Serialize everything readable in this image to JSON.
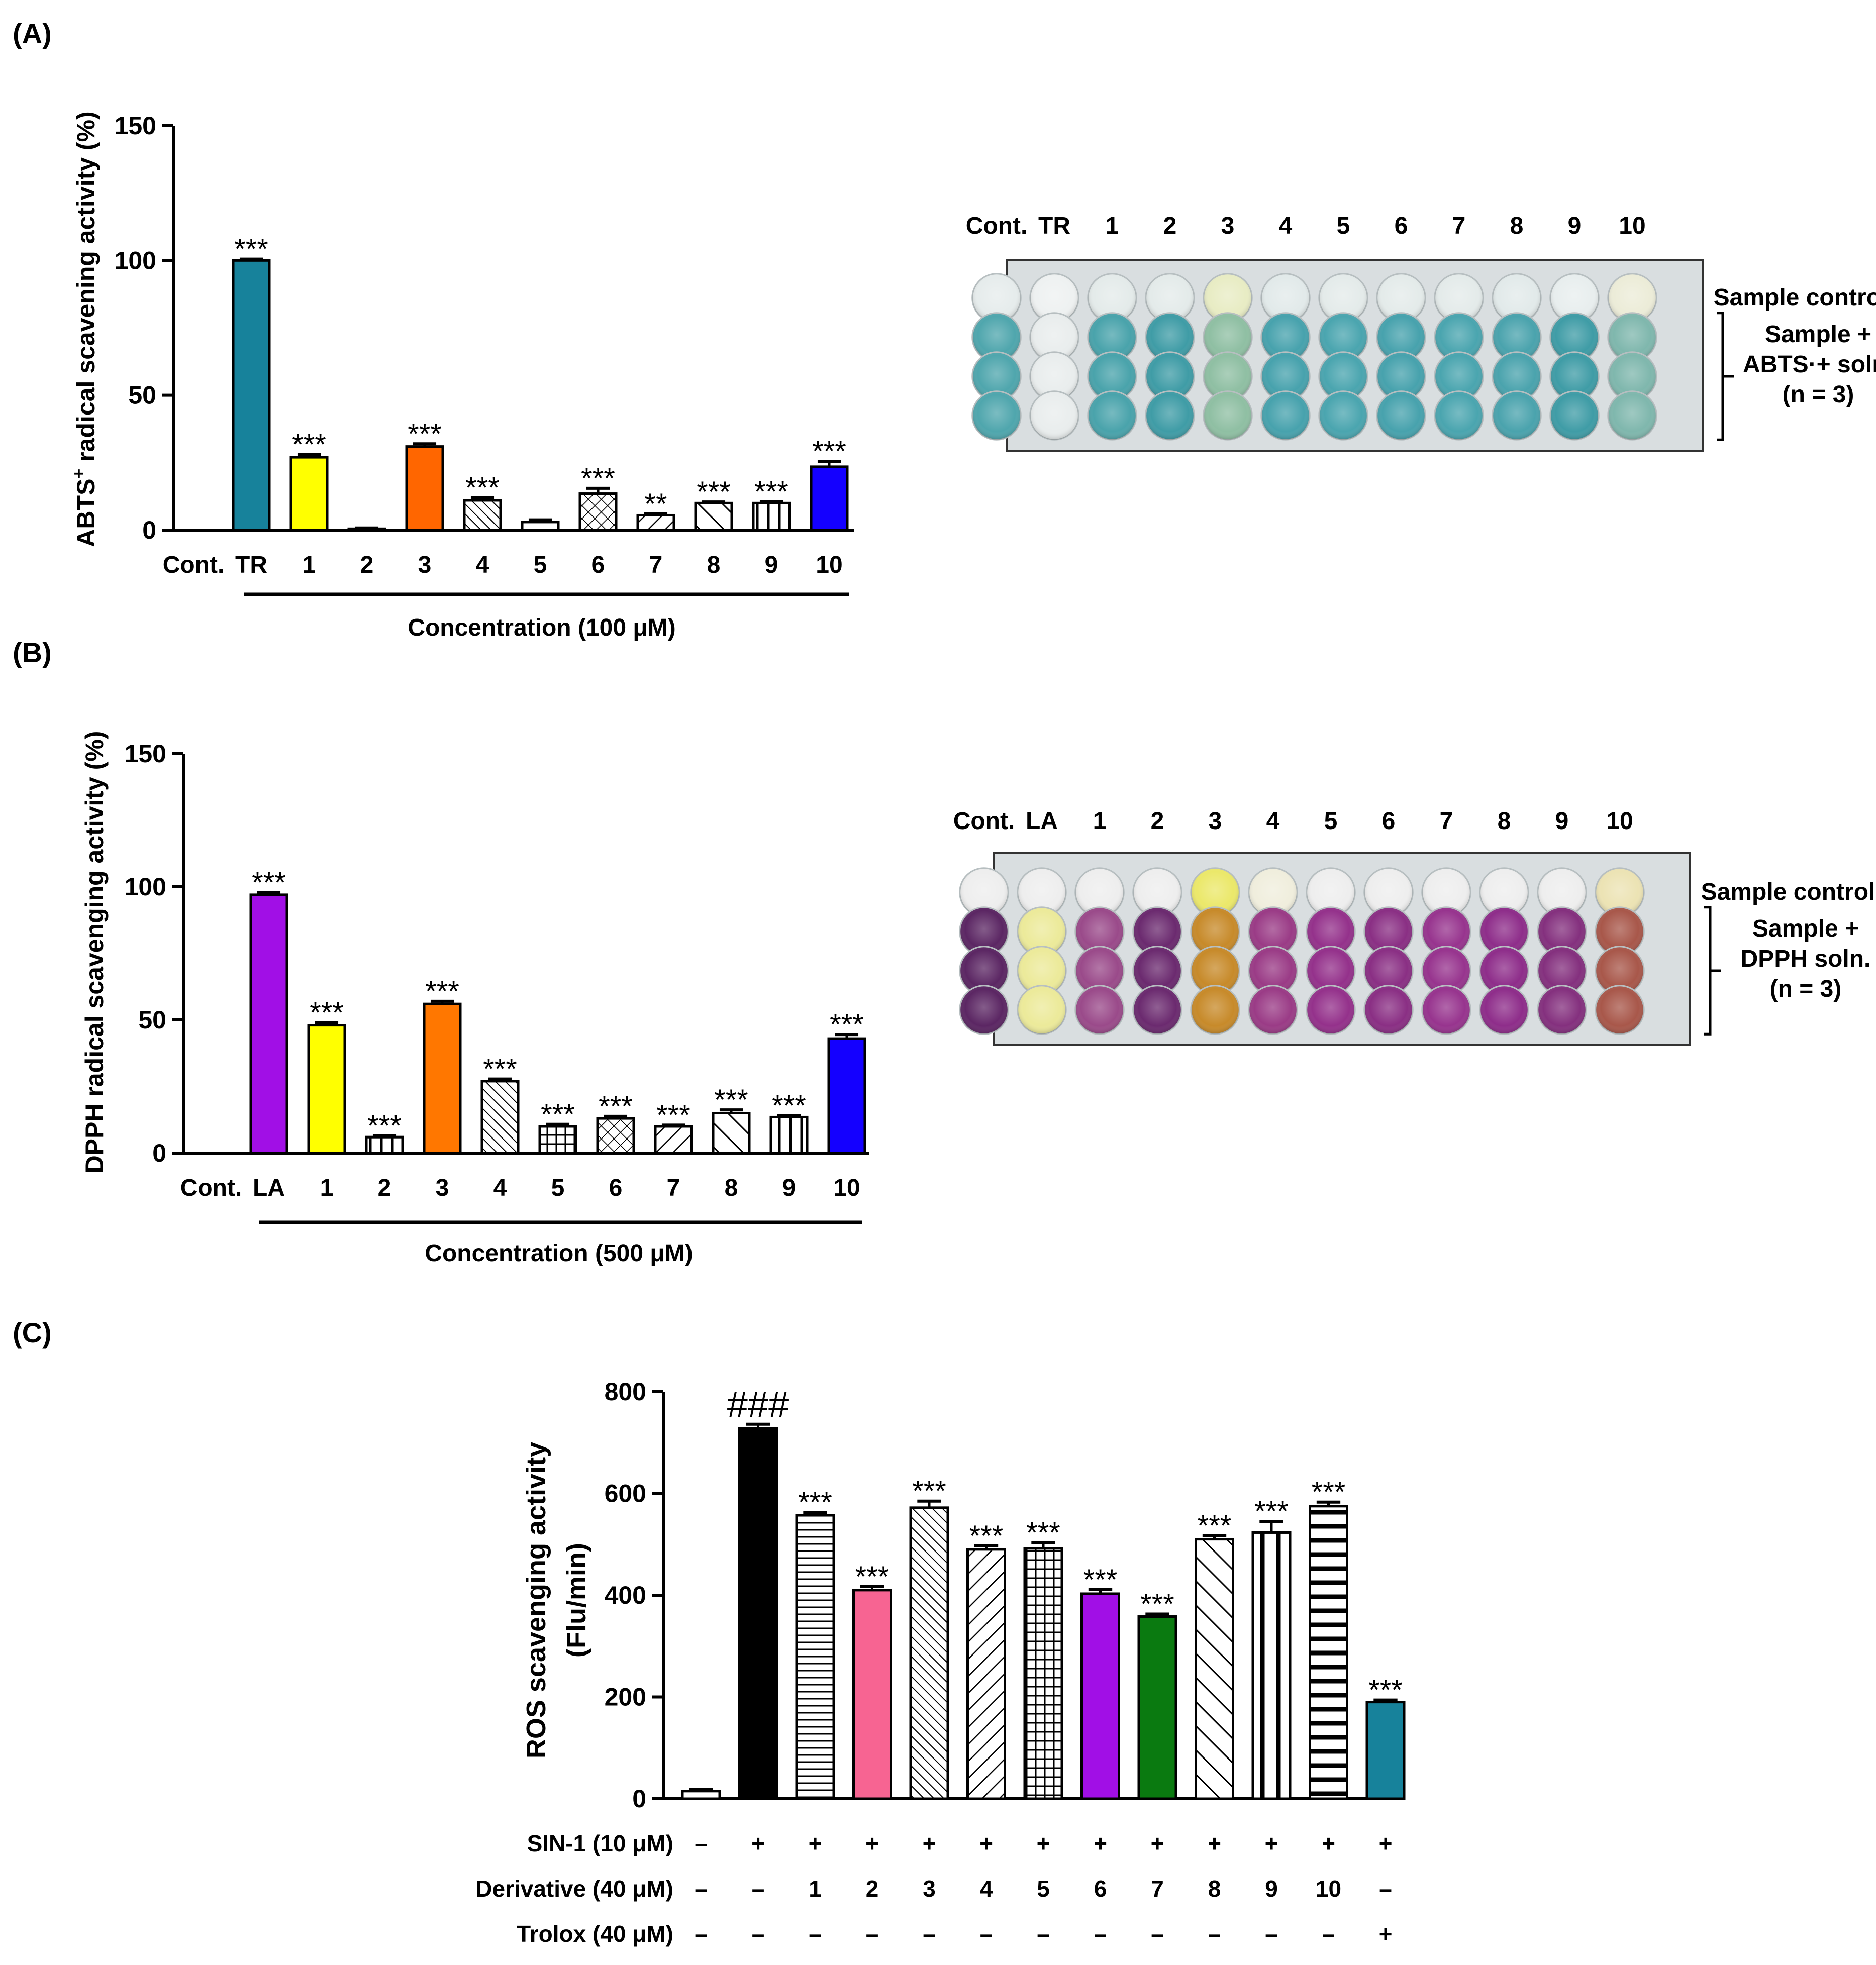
{
  "chart_data": [
    {
      "panel": "(A)",
      "type": "bar",
      "ylabel": "ABTS+ radical scavening activity (%)",
      "ylabel_main": "ABTS",
      "ylabel_sup": "+",
      "ylabel_rest": " radical scavening activity (%)",
      "xlabel": "Concentration (100 μM)",
      "ylim": [
        0,
        150
      ],
      "yticks": [
        "0",
        "50",
        "100",
        "150"
      ],
      "categories": [
        "Cont.",
        "TR",
        "1",
        "2",
        "3",
        "4",
        "5",
        "6",
        "7",
        "8",
        "9",
        "10"
      ],
      "values": [
        0,
        100,
        27,
        0.5,
        31,
        11,
        3,
        13.5,
        5.5,
        10,
        10,
        23.5
      ],
      "errors": [
        0,
        0.5,
        1,
        0.3,
        1,
        1,
        0.8,
        2,
        0.5,
        0.4,
        0.5,
        2
      ],
      "fills": [
        "none",
        "#17829b",
        "#ffff00",
        "none",
        "#ff6600",
        "diag-dense",
        "none",
        "cross",
        "diag-back",
        "diag-wide",
        "vertical",
        "#1400ff"
      ],
      "significance": [
        "",
        "***",
        "***",
        "",
        "***",
        "***",
        "",
        "***",
        "**",
        "***",
        "***",
        "***"
      ]
    },
    {
      "panel": "(B)",
      "type": "bar",
      "ylabel": "DPPH radical scavenging activity (%)",
      "xlabel": "Concentration (500 μM)",
      "ylim": [
        0,
        150
      ],
      "yticks": [
        "0",
        "50",
        "100",
        "150"
      ],
      "categories": [
        "Cont.",
        "LA",
        "1",
        "2",
        "3",
        "4",
        "5",
        "6",
        "7",
        "8",
        "9",
        "10"
      ],
      "values": [
        0,
        97,
        48,
        6,
        56,
        27,
        10,
        13,
        10,
        15,
        13.5,
        43
      ],
      "errors": [
        0,
        0.8,
        1,
        0.5,
        1,
        0.8,
        0.8,
        0.8,
        0.5,
        1.2,
        0.6,
        1.5
      ],
      "fills": [
        "none",
        "#a10fe6",
        "#ffff00",
        "vertical",
        "#ff7700",
        "diag-dense",
        "grid",
        "cross",
        "diag-back",
        "diag-wide",
        "vertical",
        "#1400ff"
      ],
      "significance": [
        "",
        "***",
        "***",
        "***",
        "***",
        "***",
        "***",
        "***",
        "***",
        "***",
        "***",
        "***"
      ]
    },
    {
      "panel": "(C)",
      "type": "bar",
      "ylabel_line1": "ROS scavenging activity",
      "ylabel_line2": "(Flu/min)",
      "ylim": [
        0,
        800
      ],
      "yticks": [
        "0",
        "200",
        "400",
        "600",
        "800"
      ],
      "values": [
        15,
        728,
        557,
        410,
        572,
        490,
        492,
        403,
        358,
        510,
        523,
        575,
        190
      ],
      "errors": [
        3,
        8,
        6,
        7,
        13,
        7,
        11,
        8,
        5,
        7,
        22,
        8,
        4
      ],
      "fills": [
        "none",
        "#000000",
        "horizontal",
        "#f76492",
        "diag-dense",
        "diag-back",
        "grid",
        "#a10fe6",
        "#0a7a10",
        "diag-wide",
        "vertical-bold",
        "horizontal-bold",
        "#17829b"
      ],
      "significance": [
        "",
        "###",
        "***",
        "***",
        "***",
        "***",
        "***",
        "***",
        "***",
        "***",
        "***",
        "***",
        "***"
      ],
      "rows": [
        {
          "label": "SIN-1 (10 μM)",
          "cells": [
            "–",
            "+",
            "+",
            "+",
            "+",
            "+",
            "+",
            "+",
            "+",
            "+",
            "+",
            "+",
            "+"
          ]
        },
        {
          "label": "Derivative (40 μM)",
          "cells": [
            "–",
            "–",
            "1",
            "2",
            "3",
            "4",
            "5",
            "6",
            "7",
            "8",
            "9",
            "10",
            "–"
          ]
        },
        {
          "label": "Trolox (40 μM)",
          "cells": [
            "–",
            "–",
            "–",
            "–",
            "–",
            "–",
            "–",
            "–",
            "–",
            "–",
            "–",
            "–",
            "+"
          ]
        }
      ]
    }
  ],
  "plates": [
    {
      "columns": [
        "Cont.",
        "TR",
        "1",
        "2",
        "3",
        "4",
        "5",
        "6",
        "7",
        "8",
        "9",
        "10"
      ],
      "row_label_top": "Sample control",
      "row_label_group": [
        "Sample +",
        "ABTS·+ soln.",
        "(n = 3)"
      ],
      "well_colors_control": [
        "#e6ecec",
        "#eef1f1",
        "#e4ebea",
        "#e4ebea",
        "#e8ecc4",
        "#e2eaea",
        "#e4ebea",
        "#e4ebea",
        "#e4ebea",
        "#e2eaea",
        "#e8eeee",
        "#ececd8"
      ],
      "well_colors_sample": [
        "#4fa6ad",
        "#e9eded",
        "#49a3ab",
        "#3f9ca6",
        "#8fbfa3",
        "#47a2ad",
        "#4aa5af",
        "#47a2ad",
        "#4aa5af",
        "#4aa3ad",
        "#3f9ca6",
        "#7fb7ad"
      ]
    },
    {
      "columns": [
        "Cont.",
        "LA",
        "1",
        "2",
        "3",
        "4",
        "5",
        "6",
        "7",
        "8",
        "9",
        "10"
      ],
      "row_label_top": "Sample control",
      "row_label_group": [
        "Sample +",
        "DPPH soln.",
        "(n = 3)"
      ],
      "well_colors_control": [
        "#eeeeee",
        "#eeeeee",
        "#eeeeee",
        "#eeeeee",
        "#ebe86a",
        "#f0eedd",
        "#eeeeee",
        "#eeeeee",
        "#eeeeee",
        "#eeeeee",
        "#eeeeee",
        "#ece3b4"
      ],
      "well_colors_sample": [
        "#5b2663",
        "#ecea9a",
        "#9a4a8a",
        "#6b2a6f",
        "#c78a2a",
        "#9a3b86",
        "#94318b",
        "#8a2f84",
        "#97348e",
        "#8e2d8a",
        "#84307e",
        "#a8574a"
      ]
    }
  ]
}
